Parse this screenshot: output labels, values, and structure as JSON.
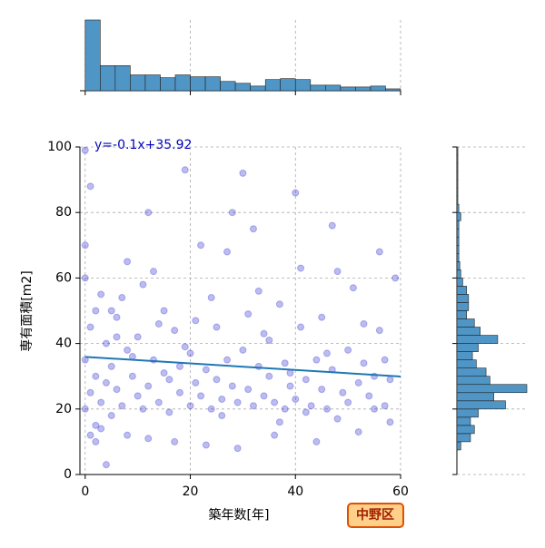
{
  "chart_data": [
    {
      "type": "scatter",
      "xlabel": "築年数[年]",
      "ylabel": "専有面積[m2]",
      "annotation": "y=-0.1x+35.92",
      "badge": "中野区",
      "xlim": [
        -1,
        60
      ],
      "ylim": [
        0,
        100
      ],
      "xticks": [
        0,
        20,
        40,
        60
      ],
      "yticks": [
        0,
        20,
        40,
        60,
        80,
        100
      ],
      "grid": true,
      "color": "#2222cc",
      "line_color": "#1f77b4",
      "regression": {
        "x": [
          0,
          60
        ],
        "y": [
          35.92,
          29.92
        ]
      },
      "points": [
        [
          0,
          20
        ],
        [
          0,
          35
        ],
        [
          0,
          60
        ],
        [
          1,
          25
        ],
        [
          1,
          45
        ],
        [
          1,
          88
        ],
        [
          2,
          15
        ],
        [
          2,
          30
        ],
        [
          3,
          22
        ],
        [
          3,
          55
        ],
        [
          4,
          28
        ],
        [
          4,
          40
        ],
        [
          5,
          18
        ],
        [
          5,
          33
        ],
        [
          6,
          26
        ],
        [
          6,
          48
        ],
        [
          7,
          21
        ],
        [
          8,
          38
        ],
        [
          8,
          65
        ],
        [
          9,
          30
        ],
        [
          10,
          24
        ],
        [
          10,
          42
        ],
        [
          11,
          20
        ],
        [
          12,
          27
        ],
        [
          12,
          80
        ],
        [
          13,
          35
        ],
        [
          14,
          22
        ],
        [
          15,
          31
        ],
        [
          15,
          50
        ],
        [
          16,
          19
        ],
        [
          17,
          44
        ],
        [
          18,
          25
        ],
        [
          18,
          33
        ],
        [
          19,
          93
        ],
        [
          20,
          21
        ],
        [
          20,
          37
        ],
        [
          21,
          28
        ],
        [
          22,
          24
        ],
        [
          22,
          70
        ],
        [
          23,
          32
        ],
        [
          24,
          20
        ],
        [
          25,
          29
        ],
        [
          25,
          45
        ],
        [
          26,
          23
        ],
        [
          27,
          35
        ],
        [
          28,
          27
        ],
        [
          28,
          80
        ],
        [
          29,
          22
        ],
        [
          30,
          92
        ],
        [
          30,
          38
        ],
        [
          31,
          26
        ],
        [
          32,
          21
        ],
        [
          33,
          33
        ],
        [
          33,
          56
        ],
        [
          34,
          24
        ],
        [
          35,
          30
        ],
        [
          35,
          41
        ],
        [
          36,
          22
        ],
        [
          37,
          52
        ],
        [
          38,
          20
        ],
        [
          38,
          34
        ],
        [
          39,
          27
        ],
        [
          40,
          23
        ],
        [
          40,
          86
        ],
        [
          41,
          45
        ],
        [
          42,
          29
        ],
        [
          43,
          21
        ],
        [
          44,
          35
        ],
        [
          45,
          26
        ],
        [
          45,
          48
        ],
        [
          46,
          20
        ],
        [
          47,
          32
        ],
        [
          48,
          62
        ],
        [
          49,
          25
        ],
        [
          50,
          22
        ],
        [
          50,
          38
        ],
        [
          51,
          57
        ],
        [
          52,
          28
        ],
        [
          53,
          34
        ],
        [
          54,
          24
        ],
        [
          55,
          30
        ],
        [
          56,
          44
        ],
        [
          57,
          21
        ],
        [
          58,
          29
        ],
        [
          59,
          60
        ],
        [
          0,
          70
        ],
        [
          1,
          12
        ],
        [
          2,
          10
        ],
        [
          3,
          14
        ],
        [
          5,
          50
        ],
        [
          8,
          12
        ],
        [
          12,
          11
        ],
        [
          17,
          10
        ],
        [
          23,
          9
        ],
        [
          29,
          8
        ],
        [
          36,
          12
        ],
        [
          44,
          10
        ],
        [
          52,
          13
        ],
        [
          58,
          16
        ],
        [
          4,
          3
        ],
        [
          0,
          99
        ],
        [
          6,
          42
        ],
        [
          9,
          36
        ],
        [
          11,
          58
        ],
        [
          14,
          46
        ],
        [
          16,
          29
        ],
        [
          19,
          39
        ],
        [
          21,
          47
        ],
        [
          24,
          54
        ],
        [
          26,
          18
        ],
        [
          31,
          49
        ],
        [
          34,
          43
        ],
        [
          37,
          16
        ],
        [
          39,
          31
        ],
        [
          42,
          19
        ],
        [
          46,
          37
        ],
        [
          48,
          17
        ],
        [
          53,
          46
        ],
        [
          55,
          20
        ],
        [
          57,
          35
        ],
        [
          2,
          50
        ],
        [
          7,
          54
        ],
        [
          13,
          62
        ],
        [
          27,
          68
        ],
        [
          32,
          75
        ],
        [
          41,
          63
        ],
        [
          47,
          76
        ],
        [
          56,
          68
        ]
      ]
    },
    {
      "type": "histogram",
      "orientation": "vertical",
      "color": "#4f95c6",
      "bins": [
        0,
        2.86,
        5.71,
        8.57,
        11.43,
        14.29,
        17.14,
        20,
        22.86,
        25.71,
        28.57,
        31.43,
        34.29,
        37.14,
        40,
        42.86,
        45.71,
        48.57,
        51.43,
        54.29,
        57.14,
        60
      ],
      "counts": [
        76,
        27,
        27,
        17,
        17,
        14,
        17,
        15,
        15,
        10,
        8,
        5,
        12,
        13,
        12,
        6,
        6,
        4,
        4,
        5,
        2
      ]
    },
    {
      "type": "histogram",
      "orientation": "horizontal",
      "color": "#4f95c6",
      "bins": [
        7.5,
        10,
        12.5,
        15,
        17.5,
        20,
        22.5,
        25,
        27.5,
        30,
        32.5,
        35,
        37.5,
        40,
        42.5,
        45,
        47.5,
        50,
        52.5,
        55,
        57.5,
        60,
        62.5,
        65,
        67.5,
        70,
        72.5,
        75,
        77.5,
        80,
        82.5,
        85,
        87.5,
        90,
        92.5,
        95,
        97.5,
        100
      ],
      "counts": [
        4,
        14,
        18,
        14,
        22,
        50,
        38,
        72,
        34,
        30,
        20,
        16,
        22,
        42,
        24,
        18,
        10,
        12,
        12,
        10,
        6,
        4,
        3,
        2,
        2,
        2,
        2,
        2,
        4,
        2,
        1,
        1,
        1,
        1,
        1,
        1,
        1
      ]
    }
  ]
}
